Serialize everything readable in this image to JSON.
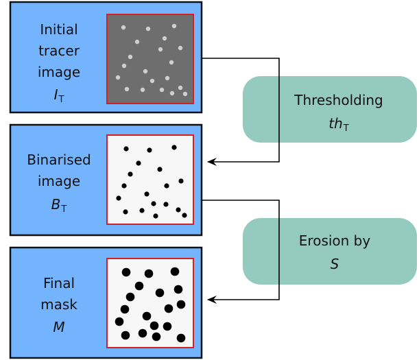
{
  "colors": {
    "panel": "#74b4ff",
    "panel_border": "#111111",
    "image_border": "#d62020",
    "tracer_bg": "#6e6e6e",
    "tracer_dot": "#cfcfcf",
    "binary_bg": "#f7f7f7",
    "dot": "#000000",
    "step_box": "#95cbbf",
    "arrow": "#000000"
  },
  "panels": [
    {
      "lines": [
        "Initial",
        "tracer",
        "image"
      ],
      "symbol": "I",
      "subscript": "T"
    },
    {
      "lines": [
        "Binarised",
        "image"
      ],
      "symbol": "B",
      "subscript": "T"
    },
    {
      "lines": [
        "Final",
        "mask"
      ],
      "symbol": "M",
      "subscript": ""
    }
  ],
  "steps": [
    {
      "label": "Thresholding",
      "symbol": "th",
      "subscript": "T"
    },
    {
      "label": "Erosion by",
      "symbol": "S",
      "subscript": ""
    }
  ]
}
